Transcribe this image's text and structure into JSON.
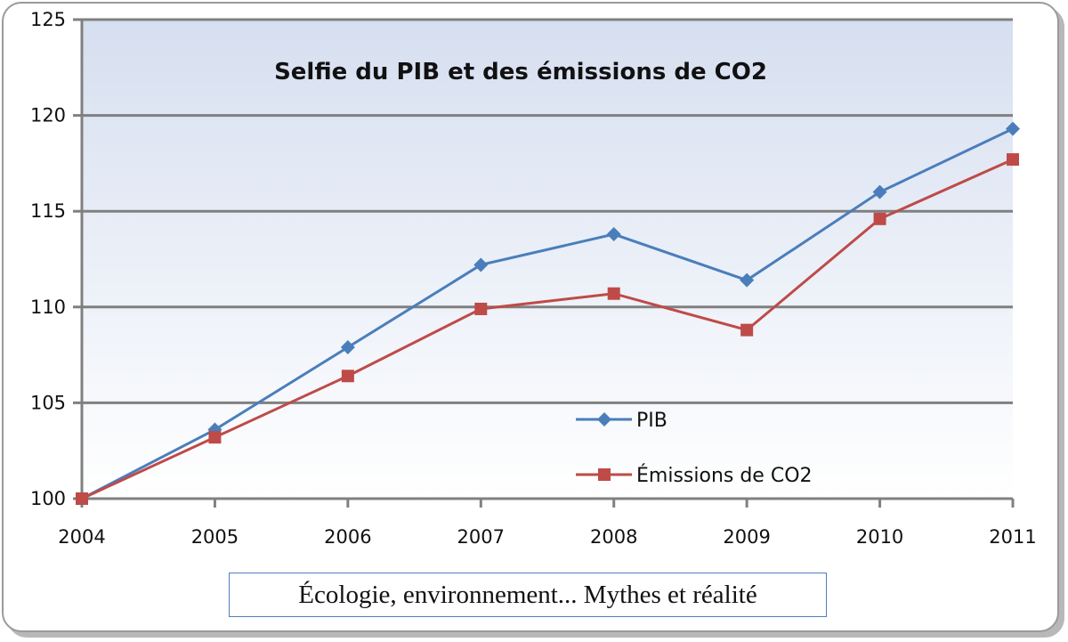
{
  "chart_data": {
    "type": "line",
    "title": "Selfie du PIB et des émissions de CO2",
    "xlabel": "",
    "ylabel": "",
    "categories": [
      "2004",
      "2005",
      "2006",
      "2007",
      "2008",
      "2009",
      "2010",
      "2011"
    ],
    "ylim": [
      100,
      125
    ],
    "yticks": [
      "100",
      "105",
      "110",
      "115",
      "120",
      "125"
    ],
    "grid": true,
    "legend_placement": "center-bottom inside plot",
    "series": [
      {
        "name": "PIB",
        "color": "#4a7ebb",
        "marker": "diamond",
        "values": [
          100,
          103.6,
          107.9,
          112.2,
          113.8,
          111.4,
          116.0,
          119.3
        ]
      },
      {
        "name": "Émissions de CO2",
        "color": "#be4b48",
        "marker": "square",
        "values": [
          100,
          103.2,
          106.4,
          109.9,
          110.7,
          108.8,
          114.6,
          117.7
        ]
      }
    ]
  },
  "source_box": "Écologie, environnement... Mythes et réalité"
}
